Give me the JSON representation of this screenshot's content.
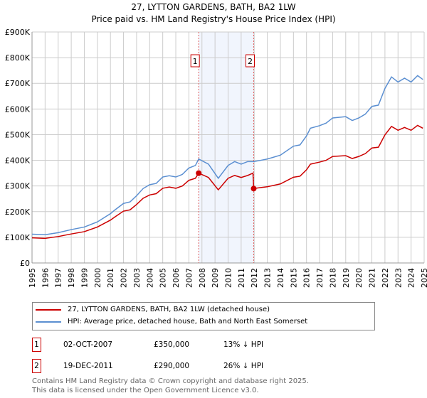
{
  "chart_data": {
    "type": "line",
    "title": "27, LYTTON GARDENS, BATH, BA2 1LW",
    "subtitle": "Price paid vs. HM Land Registry's House Price Index (HPI)",
    "ylim": [
      0,
      900000
    ],
    "xlim": [
      1995,
      2025
    ],
    "y_ticks": [
      {
        "v": 0,
        "label": "£0"
      },
      {
        "v": 100000,
        "label": "£100K"
      },
      {
        "v": 200000,
        "label": "£200K"
      },
      {
        "v": 300000,
        "label": "£300K"
      },
      {
        "v": 400000,
        "label": "£400K"
      },
      {
        "v": 500000,
        "label": "£500K"
      },
      {
        "v": 600000,
        "label": "£600K"
      },
      {
        "v": 700000,
        "label": "£700K"
      },
      {
        "v": 800000,
        "label": "£800K"
      },
      {
        "v": 900000,
        "label": "£900K"
      }
    ],
    "x_ticks": [
      "1995",
      "1996",
      "1997",
      "1998",
      "1999",
      "2000",
      "2001",
      "2002",
      "2003",
      "2004",
      "2005",
      "2006",
      "2007",
      "2008",
      "2009",
      "2010",
      "2011",
      "2012",
      "2013",
      "2014",
      "2015",
      "2016",
      "2017",
      "2018",
      "2019",
      "2020",
      "2021",
      "2022",
      "2023",
      "2024",
      "2025"
    ],
    "grid": true,
    "shaded_range": [
      2007.75,
      2011.96
    ],
    "series": [
      {
        "name": "27, LYTTON GARDENS, BATH, BA2 1LW (detached house)",
        "color": "#cc0000",
        "points": [
          [
            1995,
            98
          ],
          [
            1996,
            96
          ],
          [
            1997,
            103
          ],
          [
            1998,
            113
          ],
          [
            1999,
            122
          ],
          [
            2000,
            140
          ],
          [
            2001,
            167
          ],
          [
            2001.3,
            178
          ],
          [
            2002,
            202
          ],
          [
            2002.5,
            207
          ],
          [
            2003,
            228
          ],
          [
            2003.5,
            252
          ],
          [
            2004,
            265
          ],
          [
            2004.5,
            270
          ],
          [
            2005,
            291
          ],
          [
            2005.5,
            296
          ],
          [
            2006,
            291
          ],
          [
            2006.5,
            300
          ],
          [
            2007,
            322
          ],
          [
            2007.5,
            330
          ],
          [
            2007.75,
            350
          ],
          [
            2008.5,
            333
          ],
          [
            2009.25,
            285
          ],
          [
            2010,
            330
          ],
          [
            2010.5,
            341
          ],
          [
            2011,
            333
          ],
          [
            2011.5,
            341
          ],
          [
            2011.9,
            350
          ],
          [
            2011.96,
            290
          ],
          [
            2012.5,
            294
          ],
          [
            2013,
            297
          ],
          [
            2014,
            308
          ],
          [
            2015,
            334
          ],
          [
            2015.5,
            338
          ],
          [
            2016,
            363
          ],
          [
            2016.3,
            385
          ],
          [
            2017,
            393
          ],
          [
            2017.5,
            400
          ],
          [
            2018,
            415
          ],
          [
            2019,
            418
          ],
          [
            2019.5,
            407
          ],
          [
            2020,
            415
          ],
          [
            2020.5,
            426
          ],
          [
            2021,
            448
          ],
          [
            2021.5,
            451
          ],
          [
            2022,
            499
          ],
          [
            2022.5,
            532
          ],
          [
            2023,
            517
          ],
          [
            2023.5,
            528
          ],
          [
            2024,
            517
          ],
          [
            2024.5,
            536
          ],
          [
            2024.9,
            525
          ]
        ]
      },
      {
        "name": "HPI: Average price, detached house, Bath and North East Somerset",
        "color": "#5b8fd1",
        "points": [
          [
            1995,
            112
          ],
          [
            1996,
            110
          ],
          [
            1997,
            118
          ],
          [
            1998,
            130
          ],
          [
            1999,
            140
          ],
          [
            2000,
            160
          ],
          [
            2001,
            192
          ],
          [
            2001.3,
            205
          ],
          [
            2002,
            232
          ],
          [
            2002.5,
            238
          ],
          [
            2003,
            262
          ],
          [
            2003.5,
            290
          ],
          [
            2004,
            305
          ],
          [
            2004.5,
            310
          ],
          [
            2005,
            335
          ],
          [
            2005.5,
            340
          ],
          [
            2006,
            335
          ],
          [
            2006.5,
            345
          ],
          [
            2007,
            370
          ],
          [
            2007.5,
            380
          ],
          [
            2007.75,
            405
          ],
          [
            2008.5,
            385
          ],
          [
            2009.25,
            330
          ],
          [
            2010,
            380
          ],
          [
            2010.5,
            395
          ],
          [
            2011,
            385
          ],
          [
            2011.5,
            395
          ],
          [
            2011.96,
            395
          ],
          [
            2012.5,
            400
          ],
          [
            2013,
            405
          ],
          [
            2014,
            420
          ],
          [
            2015,
            455
          ],
          [
            2015.5,
            460
          ],
          [
            2016,
            495
          ],
          [
            2016.3,
            525
          ],
          [
            2017,
            535
          ],
          [
            2017.5,
            545
          ],
          [
            2018,
            565
          ],
          [
            2019,
            570
          ],
          [
            2019.5,
            555
          ],
          [
            2020,
            565
          ],
          [
            2020.5,
            580
          ],
          [
            2021,
            610
          ],
          [
            2021.5,
            615
          ],
          [
            2022,
            680
          ],
          [
            2022.5,
            725
          ],
          [
            2023,
            705
          ],
          [
            2023.5,
            720
          ],
          [
            2024,
            705
          ],
          [
            2024.5,
            730
          ],
          [
            2024.9,
            715
          ]
        ]
      }
    ],
    "point_units": "thousand GBP",
    "sales": [
      {
        "label": "1",
        "x": 2007.75,
        "value": 350000,
        "date": "02-OCT-2007",
        "price": "£350,000",
        "diff": "13% ↓ HPI"
      },
      {
        "label": "2",
        "x": 2011.96,
        "value": 290000,
        "date": "19-DEC-2011",
        "price": "£290,000",
        "diff": "26% ↓ HPI"
      }
    ]
  },
  "footer": {
    "line1": "Contains HM Land Registry data © Crown copyright and database right 2025.",
    "line2": "This data is licensed under the Open Government Licence v3.0."
  }
}
